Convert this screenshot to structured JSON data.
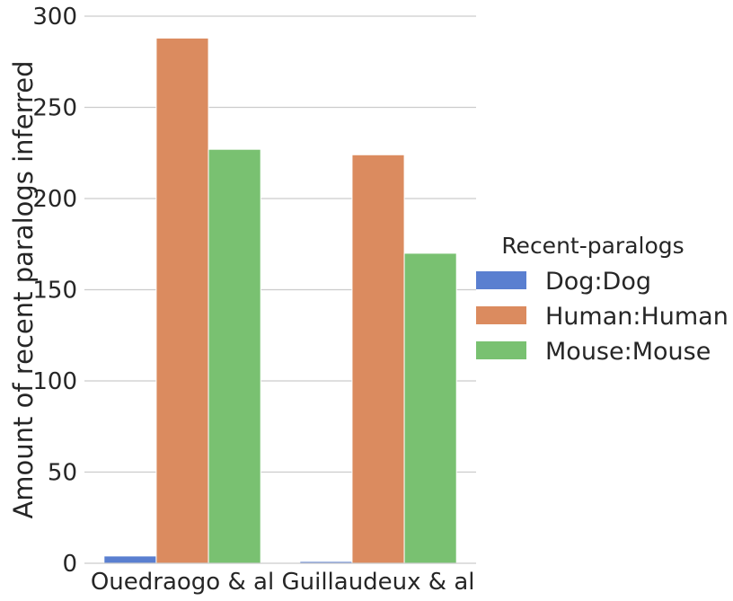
{
  "chart_data": {
    "type": "bar",
    "ylabel": "Amount of recent paralogs inferred",
    "xlabel": "",
    "ylim": [
      0,
      300
    ],
    "yticks": [
      0,
      50,
      100,
      150,
      200,
      250,
      300
    ],
    "grid": "horizontal",
    "categories": [
      "Ouedraogo & al",
      "Guillaudeux & al"
    ],
    "series": [
      {
        "name": "Dog:Dog",
        "color": "#5a7fd0",
        "values": [
          4,
          1
        ]
      },
      {
        "name": "Human:Human",
        "color": "#db8b5f",
        "values": [
          288,
          224
        ]
      },
      {
        "name": "Mouse:Mouse",
        "color": "#79c171",
        "values": [
          227,
          170
        ]
      }
    ],
    "legend": {
      "title": "Recent-paralogs",
      "placement": "right"
    }
  }
}
